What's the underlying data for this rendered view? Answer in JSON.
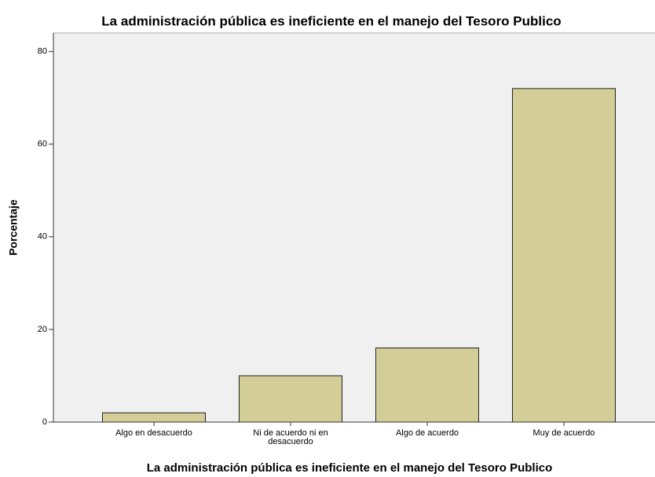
{
  "chart_data": {
    "type": "bar",
    "title": "La administración pública es ineficiente en el manejo del Tesoro Publico",
    "x_label": "La administración pública es ineficiente en el manejo del Tesoro Publico",
    "y_label": "Porcentaje",
    "categories": [
      "Algo en desacuerdo",
      "Ni de acuerdo ni en desacuerdo",
      "Algo de acuerdo",
      "Muy de acuerdo"
    ],
    "values": [
      2,
      10,
      16,
      72
    ],
    "color": "#d3ce97",
    "ylim": [
      0,
      84
    ],
    "yticks": [
      0,
      20,
      40,
      60,
      80
    ],
    "grid": false
  }
}
